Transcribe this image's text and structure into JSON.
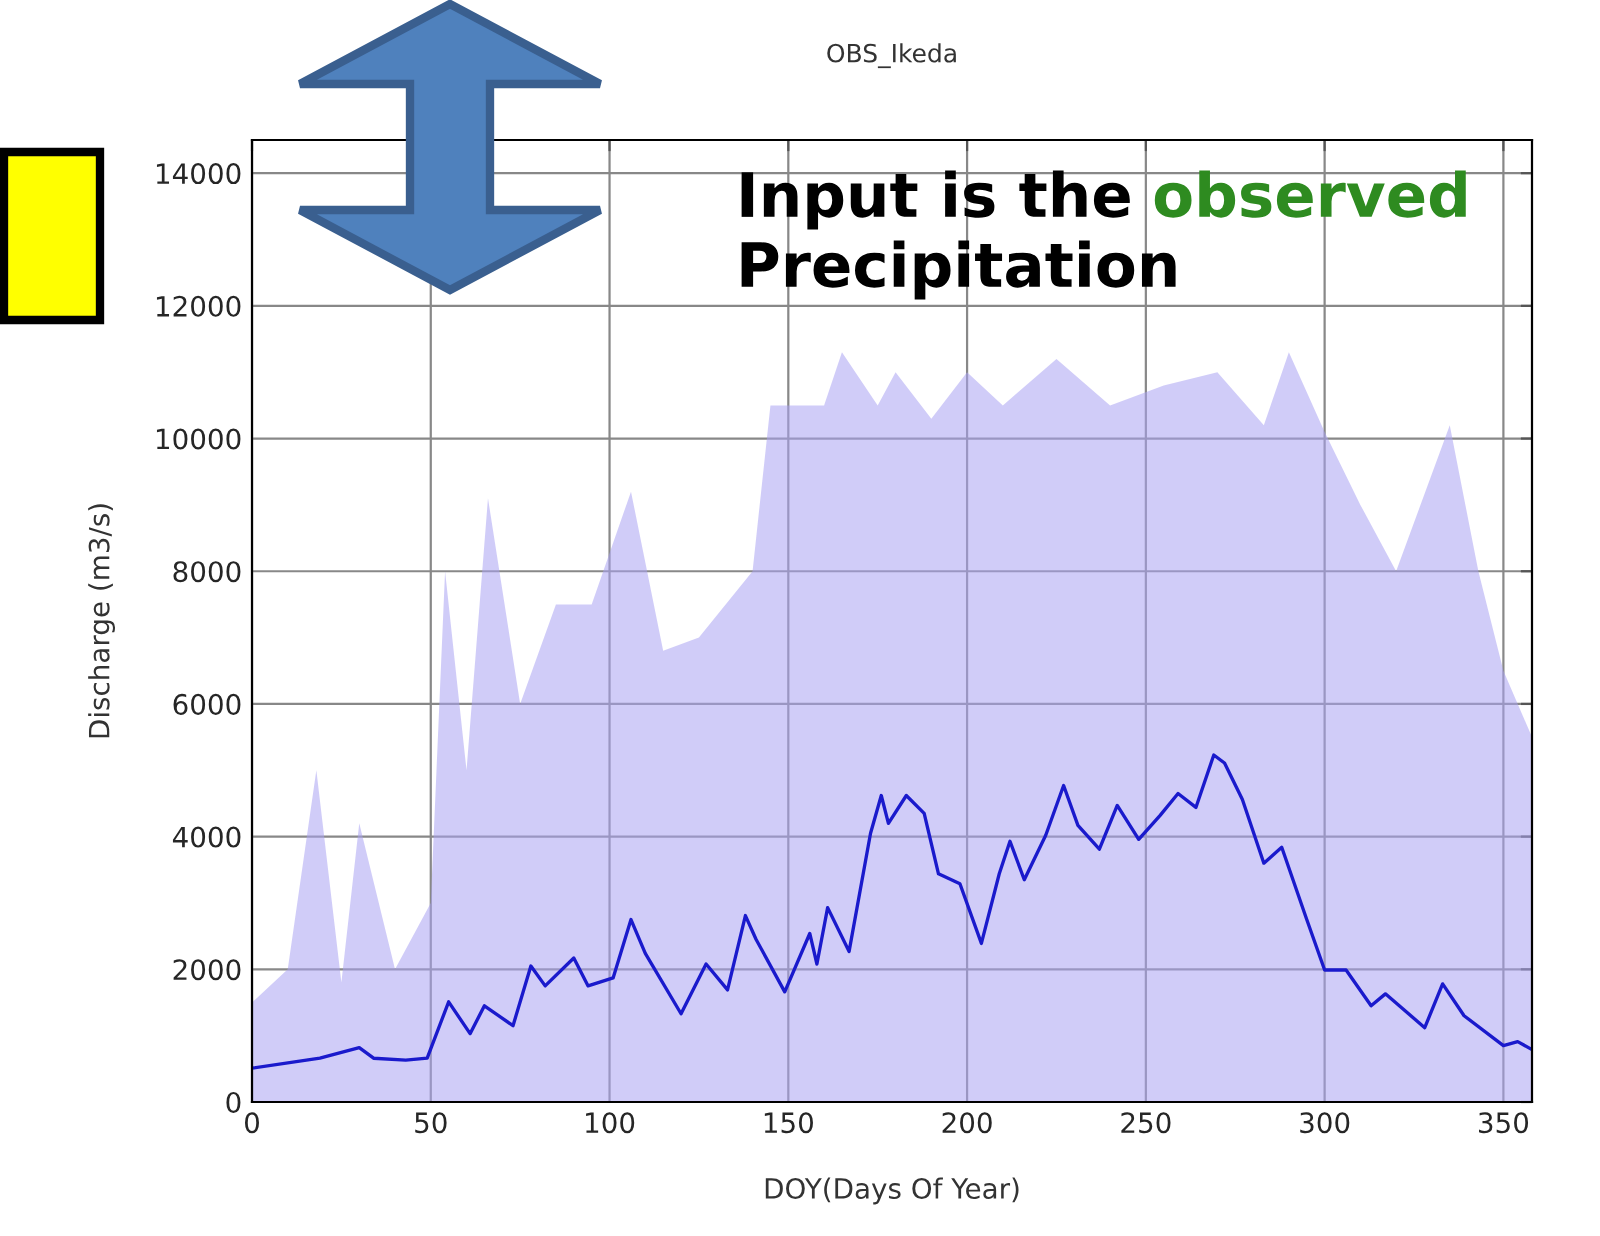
{
  "chart_data": {
    "type": "line",
    "title": "OBS_Ikeda",
    "xlabel": "DOY(Days Of Year)",
    "ylabel": "Discharge (m3/s)",
    "annotations": [
      "Input is the",
      "observed",
      "Precipitation"
    ],
    "xlim": [
      0,
      358
    ],
    "xticks": [
      0,
      50,
      100,
      150,
      200,
      250,
      300,
      350
    ],
    "ylim": [
      0,
      14500
    ],
    "yticks": [
      0,
      2000,
      4000,
      6000,
      8000,
      10000,
      12000,
      14000
    ],
    "grid": true,
    "series": [
      {
        "type": "area",
        "color": "#aaa3f2",
        "x": [
          0,
          10,
          18,
          25,
          30,
          40,
          50,
          54,
          60,
          66,
          75,
          85,
          95,
          106,
          115,
          125,
          140,
          145,
          160,
          165,
          175,
          180,
          190,
          200,
          210,
          225,
          240,
          255,
          270,
          283,
          290,
          300,
          310,
          320,
          335,
          343,
          350,
          358
        ],
        "values": [
          1500,
          2000,
          5000,
          1800,
          4200,
          2000,
          3000,
          8000,
          5000,
          9100,
          6000,
          7500,
          7500,
          9200,
          6800,
          7000,
          8000,
          10500,
          10500,
          11300,
          10500,
          11000,
          10300,
          11000,
          10500,
          11200,
          10500,
          10800,
          11000,
          10200,
          11300,
          10100,
          9000,
          8000,
          10200,
          8000,
          6500,
          5500
        ]
      },
      {
        "color": "#1a1acc",
        "x": [
          0,
          19,
          30,
          34,
          43,
          49,
          55,
          61,
          65,
          73,
          78,
          82,
          90,
          94,
          101,
          106,
          110,
          120,
          127,
          133,
          138,
          141,
          149,
          156,
          158,
          161,
          167,
          173,
          176,
          178,
          183,
          188,
          192,
          198,
          204,
          209,
          212,
          216,
          222,
          227,
          231,
          237,
          242,
          248,
          254,
          259,
          264,
          269,
          272,
          277,
          283,
          288,
          295,
          300,
          306,
          313,
          317,
          328,
          333,
          339,
          350,
          354,
          358
        ],
        "values": [
          510,
          660,
          820,
          660,
          630,
          660,
          1510,
          1030,
          1450,
          1150,
          2050,
          1750,
          2170,
          1750,
          1870,
          2750,
          2240,
          1330,
          2080,
          1690,
          2810,
          2450,
          1660,
          2540,
          2080,
          2930,
          2270,
          4050,
          4620,
          4200,
          4620,
          4350,
          3440,
          3290,
          2390,
          3440,
          3930,
          3350,
          4020,
          4770,
          4170,
          3810,
          4470,
          3960,
          4320,
          4650,
          4440,
          5230,
          5110,
          4560,
          3600,
          3840,
          2750,
          1990,
          1990,
          1450,
          1630,
          1120,
          1780,
          1300,
          850,
          910,
          790
        ]
      }
    ]
  }
}
